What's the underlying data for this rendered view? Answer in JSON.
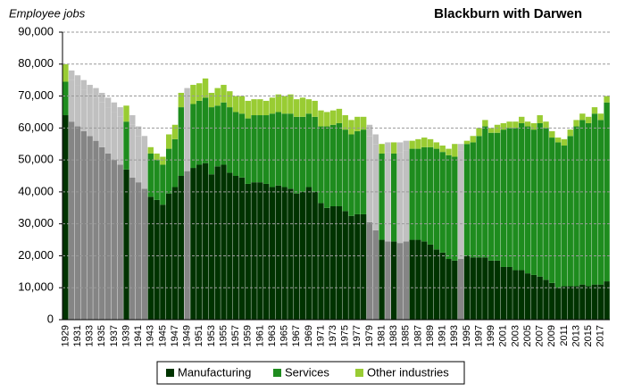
{
  "chart_data": {
    "type": "stacked_bar",
    "title": "Blackburn with Darwen",
    "y_label": "Employee jobs",
    "categories": [
      "1929",
      null,
      "1931",
      null,
      "1933",
      null,
      "1935",
      null,
      "1937",
      null,
      "1939",
      null,
      "1941",
      null,
      "1943",
      null,
      "1945",
      null,
      "1947",
      null,
      "1949",
      null,
      "1951",
      null,
      "1953",
      null,
      "1955",
      null,
      "1957",
      null,
      "1959",
      null,
      "1961",
      null,
      "1963",
      null,
      "1965",
      null,
      "1967",
      null,
      "1969",
      null,
      "1971",
      null,
      "1973",
      null,
      "1975",
      null,
      "1977",
      null,
      "1979",
      null,
      "1981",
      null,
      "1983",
      null,
      "1985",
      null,
      "1987",
      null,
      "1989",
      null,
      "1991",
      null,
      "1993",
      null,
      "1995",
      null,
      "1997",
      null,
      "1999",
      null,
      "2001",
      null,
      "2003",
      null,
      "2005",
      null,
      "2007",
      null,
      "2009",
      null,
      "2011",
      null,
      "2013",
      null,
      "2015",
      null,
      "2017",
      null
    ],
    "estimated": [
      false,
      true,
      true,
      true,
      true,
      true,
      true,
      true,
      true,
      true,
      false,
      true,
      true,
      true,
      false,
      false,
      false,
      false,
      false,
      false,
      true,
      false,
      false,
      false,
      false,
      false,
      false,
      false,
      false,
      false,
      false,
      false,
      false,
      false,
      false,
      false,
      false,
      false,
      false,
      false,
      false,
      false,
      false,
      false,
      false,
      false,
      false,
      false,
      false,
      false,
      true,
      true,
      false,
      true,
      false,
      true,
      true,
      false,
      false,
      false,
      false,
      false,
      false,
      false,
      false,
      true,
      false,
      false,
      false,
      false,
      false,
      false,
      false,
      false,
      false,
      false,
      false,
      false,
      false,
      false,
      false,
      false,
      false,
      false,
      false,
      false,
      false,
      false,
      false,
      false
    ],
    "series": [
      {
        "name": "Manufacturing",
        "color": "#003300",
        "estimate_color": "#858585",
        "values": [
          64000,
          62000,
          60500,
          59000,
          57500,
          56000,
          54000,
          52000,
          50000,
          48500,
          47000,
          44500,
          43000,
          41000,
          38500,
          37500,
          36000,
          39500,
          41500,
          45000,
          46500,
          47500,
          48500,
          49000,
          45500,
          48000,
          48500,
          46000,
          45000,
          44500,
          42500,
          43000,
          43000,
          42500,
          41500,
          42000,
          41500,
          41000,
          39500,
          40000,
          41500,
          40000,
          36500,
          35000,
          35500,
          35500,
          34000,
          32500,
          33000,
          33000,
          30500,
          28000,
          25000,
          24500,
          24500,
          24000,
          24500,
          25000,
          25000,
          24500,
          23500,
          22000,
          21000,
          19000,
          18500,
          19000,
          20000,
          19500,
          19500,
          19500,
          18500,
          18500,
          16500,
          16500,
          15500,
          15500,
          14500,
          14000,
          13500,
          12500,
          11500,
          10000,
          10500,
          10500,
          10500,
          11000,
          10500,
          11000,
          11000,
          12000
        ]
      },
      {
        "name": "Services",
        "color": "#1e8c1e",
        "estimate_color": "#c0c0c0",
        "values": [
          10500,
          13000,
          13000,
          13000,
          13000,
          13500,
          14000,
          14500,
          15000,
          15000,
          15000,
          16500,
          14500,
          13500,
          13500,
          12500,
          12500,
          14000,
          15000,
          21500,
          21000,
          20000,
          20000,
          20500,
          21000,
          19000,
          19500,
          20500,
          20000,
          20000,
          20500,
          21000,
          21000,
          21500,
          23000,
          23000,
          23000,
          23500,
          24000,
          23500,
          23000,
          23500,
          24000,
          25500,
          25500,
          26000,
          25500,
          25500,
          26000,
          26500,
          27000,
          27000,
          27000,
          28000,
          27500,
          28500,
          28500,
          28500,
          28500,
          29500,
          30500,
          31500,
          31500,
          32500,
          32500,
          34000,
          35000,
          36000,
          38000,
          41000,
          40000,
          40000,
          43000,
          43500,
          44500,
          46000,
          46000,
          45500,
          48000,
          47500,
          45500,
          45500,
          44000,
          47000,
          50000,
          51500,
          51000,
          53500,
          51500,
          56000
        ]
      },
      {
        "name": "Other industries",
        "color": "#99cc33",
        "estimate_color": "#c0c0c0",
        "values": [
          5500,
          3000,
          3000,
          3000,
          3000,
          3000,
          3000,
          3000,
          3000,
          3000,
          5000,
          3000,
          3000,
          3000,
          2000,
          2000,
          2500,
          4500,
          4500,
          4500,
          5000,
          6000,
          5500,
          6000,
          4500,
          5500,
          5500,
          5000,
          5000,
          5500,
          5500,
          5000,
          5000,
          4500,
          5000,
          5500,
          5500,
          6000,
          5500,
          6000,
          4500,
          5000,
          5000,
          4500,
          4500,
          4500,
          4500,
          4500,
          4500,
          4000,
          3500,
          3000,
          3000,
          3000,
          3500,
          3000,
          3000,
          2500,
          3000,
          3000,
          2500,
          2000,
          2000,
          2000,
          4000,
          2000,
          1000,
          2000,
          2500,
          2000,
          1500,
          2500,
          2000,
          2000,
          2000,
          2000,
          1500,
          2000,
          2500,
          2000,
          2000,
          1500,
          2000,
          2000,
          2000,
          2000,
          2000,
          2000,
          2000,
          2000
        ]
      }
    ],
    "ylim": [
      0,
      90000
    ],
    "yticks": [
      0,
      {
        "value": 10000,
        "label": "10,000"
      },
      {
        "value": 20000,
        "label": "20,000"
      },
      {
        "value": 30000,
        "label": "30,000"
      },
      {
        "value": 40000,
        "label": "40,000"
      },
      {
        "value": 50000,
        "label": "50,000"
      },
      {
        "value": 60000,
        "label": "60,000"
      },
      {
        "value": 70000,
        "label": "70,000"
      },
      {
        "value": 80000,
        "label": "80,000"
      },
      {
        "value": 90000,
        "label": "90,000"
      }
    ],
    "grid": true
  }
}
